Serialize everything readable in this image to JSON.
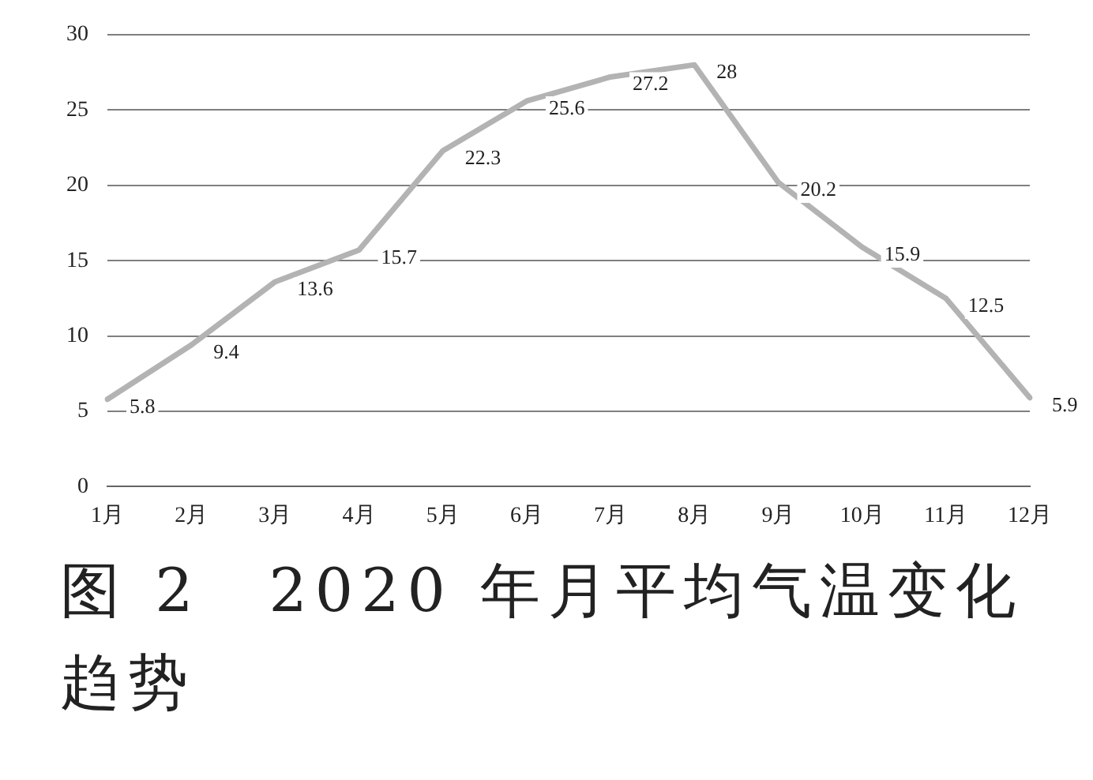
{
  "chart_data": {
    "type": "line",
    "title": "图 2　2020 年月平均气温变化趋势",
    "categories": [
      "1月",
      "2月",
      "3月",
      "4月",
      "5月",
      "6月",
      "7月",
      "8月",
      "9月",
      "10月",
      "11月",
      "12月"
    ],
    "series": [
      {
        "color": "#b3b3b3",
        "values": [
          5.8,
          9.4,
          13.6,
          15.7,
          22.3,
          25.6,
          27.2,
          28,
          20.2,
          15.9,
          12.5,
          5.9
        ]
      }
    ],
    "ylim": [
      0,
      30
    ],
    "yticks": [
      0,
      5,
      10,
      15,
      20,
      25,
      30
    ],
    "grid": "y",
    "legend": false,
    "marker": "none",
    "line_style": "solid",
    "data_labels": true
  }
}
